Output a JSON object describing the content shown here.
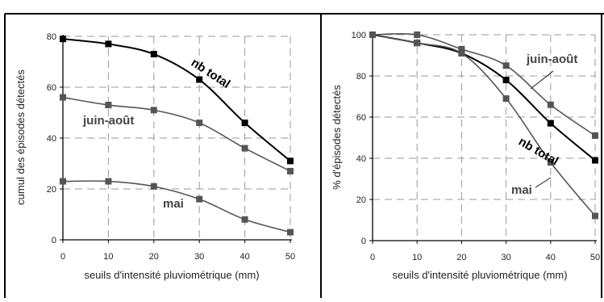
{
  "chart_data": [
    {
      "type": "line",
      "x": [
        0,
        10,
        20,
        30,
        40,
        50
      ],
      "xlabel": "seuils d'intensité pluviométrique (mm)",
      "ylabel": "cumul des épisodes détectés",
      "xlim": [
        0,
        50
      ],
      "ylim": [
        0,
        80
      ],
      "xticks": [
        "0",
        "10",
        "20",
        "30",
        "40",
        "50"
      ],
      "yticks": [
        "0",
        "20",
        "40",
        "60",
        "80"
      ],
      "grid": "dashed",
      "series": [
        {
          "name": "nb total",
          "color": "#000000",
          "values": [
            79,
            77,
            73,
            63,
            46,
            31
          ]
        },
        {
          "name": "juin-août",
          "color": "#555555",
          "values": [
            56,
            53,
            51,
            46,
            36,
            27
          ]
        },
        {
          "name": "mai",
          "color": "#555555",
          "values": [
            23,
            23,
            21,
            16,
            8,
            3
          ]
        }
      ]
    },
    {
      "type": "line",
      "x": [
        0,
        10,
        20,
        30,
        40,
        50
      ],
      "xlabel": "seuils d'intensité pluviométrique (mm)",
      "ylabel": "% d'épisodes détectés",
      "xlim": [
        0,
        50
      ],
      "ylim": [
        0,
        100
      ],
      "xticks": [
        "0",
        "10",
        "20",
        "30",
        "40",
        "50"
      ],
      "yticks": [
        "0",
        "20",
        "40",
        "60",
        "80",
        "100"
      ],
      "grid": "dashed",
      "series": [
        {
          "name": "juin-août",
          "color": "#555555",
          "values": [
            100,
            100,
            93,
            85,
            66,
            51
          ]
        },
        {
          "name": "nb total",
          "color": "#000000",
          "values": [
            100,
            96,
            91,
            78,
            57,
            39
          ]
        },
        {
          "name": "mai",
          "color": "#555555",
          "values": [
            100,
            96,
            91,
            69,
            38,
            12
          ]
        }
      ]
    }
  ]
}
